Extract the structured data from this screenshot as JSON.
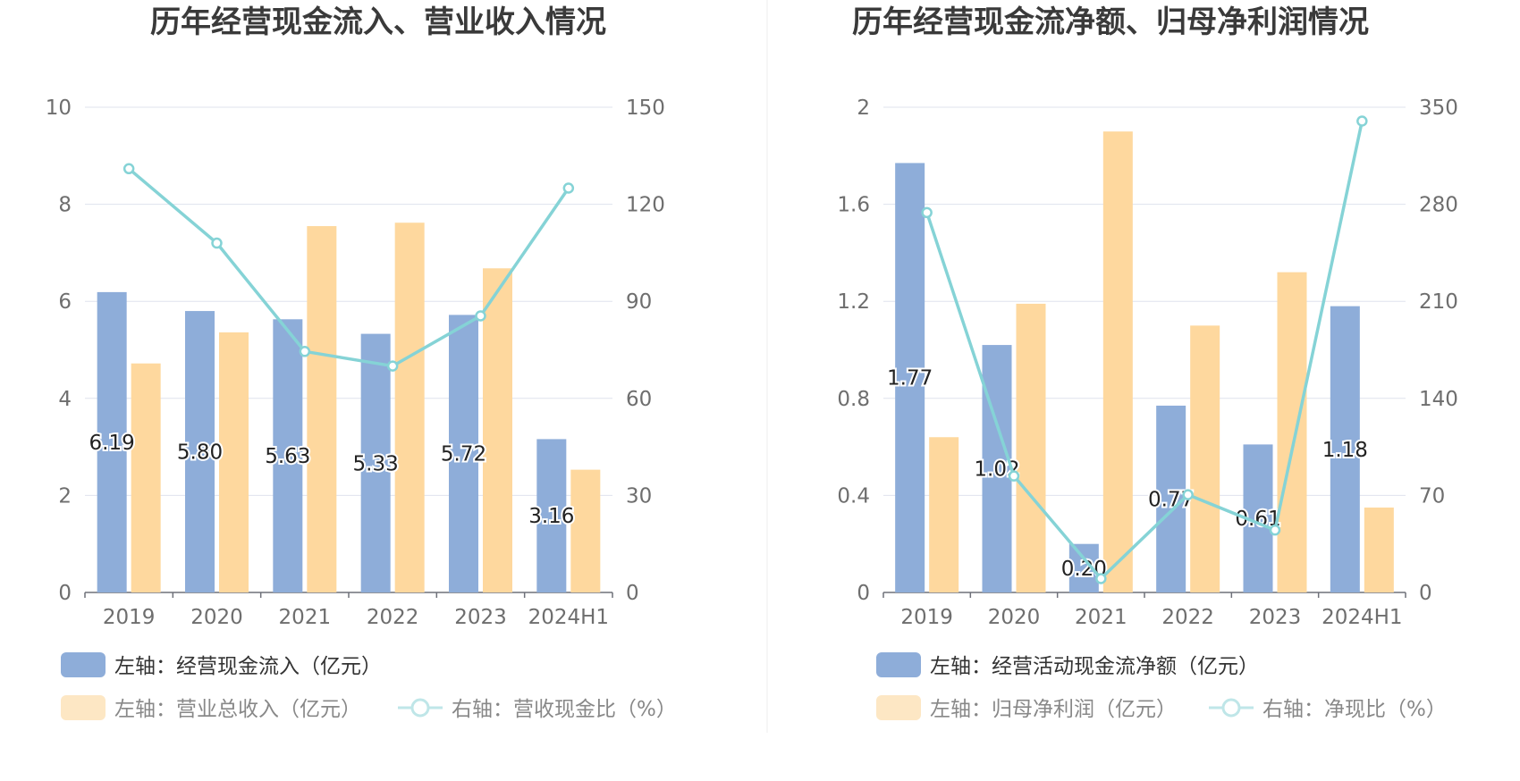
{
  "chart_data": [
    {
      "type": "bar",
      "title": "历年经营现金流入、营业收入情况",
      "categories": [
        "2019",
        "2020",
        "2021",
        "2022",
        "2023",
        "2024H1"
      ],
      "y_left_ticks": [
        "0",
        "2",
        "4",
        "6",
        "8",
        "10"
      ],
      "y_right_ticks": [
        "0",
        "30",
        "60",
        "90",
        "120",
        "150"
      ],
      "ylim_left": [
        0,
        10
      ],
      "ylim_right": [
        0,
        150
      ],
      "grid": true,
      "legend_position": "bottom",
      "series": [
        {
          "name": "左轴：经营现金流入（亿元）",
          "type": "bar",
          "axis": "left",
          "color": "#8eadd9",
          "values": [
            6.19,
            5.8,
            5.63,
            5.33,
            5.72,
            3.16
          ],
          "labels": [
            "6.19",
            "5.80",
            "5.63",
            "5.33",
            "5.72",
            "3.16"
          ]
        },
        {
          "name": "左轴：营业总收入（亿元）",
          "type": "bar",
          "axis": "left",
          "color": "#fed89e",
          "values": [
            4.72,
            5.36,
            7.55,
            7.62,
            6.68,
            2.53
          ]
        },
        {
          "name": "右轴：营收现金比（%）",
          "type": "line",
          "axis": "right",
          "color": "#85d3d6",
          "values": [
            131,
            108,
            74.5,
            70,
            85.5,
            125
          ]
        }
      ]
    },
    {
      "type": "bar",
      "title": "历年经营现金流净额、归母净利润情况",
      "categories": [
        "2019",
        "2020",
        "2021",
        "2022",
        "2023",
        "2024H1"
      ],
      "y_left_ticks": [
        "0",
        "0.4",
        "0.8",
        "1.2",
        "1.6",
        "2"
      ],
      "y_right_ticks": [
        "0",
        "70",
        "140",
        "210",
        "280",
        "350"
      ],
      "ylim_left": [
        0,
        2
      ],
      "ylim_right": [
        0,
        350
      ],
      "grid": true,
      "legend_position": "bottom",
      "series": [
        {
          "name": "左轴：经营活动现金流净额（亿元）",
          "type": "bar",
          "axis": "left",
          "color": "#8eadd9",
          "values": [
            1.77,
            1.02,
            0.2,
            0.77,
            0.61,
            1.18
          ],
          "labels": [
            "1.77",
            "1.02",
            "0.20",
            "0.77",
            "0.61",
            "1.18"
          ]
        },
        {
          "name": "左轴：归母净利润（亿元）",
          "type": "bar",
          "axis": "left",
          "color": "#fed89e",
          "values": [
            0.64,
            1.19,
            1.9,
            1.1,
            1.32,
            0.35
          ]
        },
        {
          "name": "右轴：净现比（%）",
          "type": "line",
          "axis": "right",
          "color": "#85d3d6",
          "values": [
            274,
            84,
            10,
            70.5,
            45,
            340
          ]
        }
      ]
    }
  ]
}
